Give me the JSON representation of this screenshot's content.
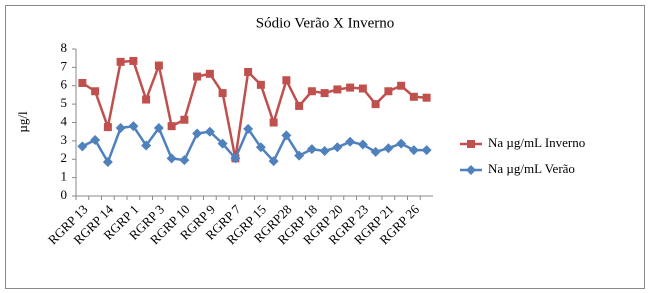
{
  "chart_data": {
    "type": "line",
    "title": "Sódio Verão X Inverno",
    "y_label": "µg/l",
    "categories": [
      "RGRP 13",
      null,
      "RGRP 14",
      null,
      "RGRP 1",
      null,
      "RGRP 3",
      null,
      "RGRP 10",
      null,
      "RGRP 9",
      null,
      "RGRP 7",
      null,
      "RGRP 15",
      null,
      "RGRP28",
      null,
      "RGRP 18",
      null,
      "RGRP 20",
      null,
      "RGRP 23",
      null,
      "RGRP 21",
      null,
      "RGRP 26",
      null
    ],
    "series": [
      {
        "name": "Na µg/mL Inverno",
        "color": "#c0504d",
        "marker": "square",
        "values": [
          6.15,
          5.7,
          3.75,
          7.3,
          7.35,
          5.25,
          7.1,
          3.8,
          4.15,
          6.5,
          6.65,
          5.6,
          2.05,
          6.75,
          6.05,
          4.0,
          6.3,
          4.9,
          5.7,
          5.6,
          5.8,
          5.9,
          5.85,
          5.0,
          5.7,
          6.0,
          5.4,
          5.35
        ]
      },
      {
        "name": "Na µg/mL Verão",
        "color": "#4f81bd",
        "marker": "diamond",
        "values": [
          2.7,
          3.05,
          1.85,
          3.7,
          3.8,
          2.75,
          3.7,
          2.05,
          1.95,
          3.4,
          3.5,
          2.85,
          2.05,
          3.65,
          2.65,
          1.9,
          3.3,
          2.2,
          2.55,
          2.45,
          2.65,
          2.95,
          2.8,
          2.4,
          2.6,
          2.85,
          2.5,
          2.5
        ]
      }
    ],
    "ylim": [
      0,
      8
    ],
    "yticks": [
      0,
      1,
      2,
      3,
      4,
      5,
      6,
      7,
      8
    ],
    "grid": false,
    "legend_position": "right"
  }
}
